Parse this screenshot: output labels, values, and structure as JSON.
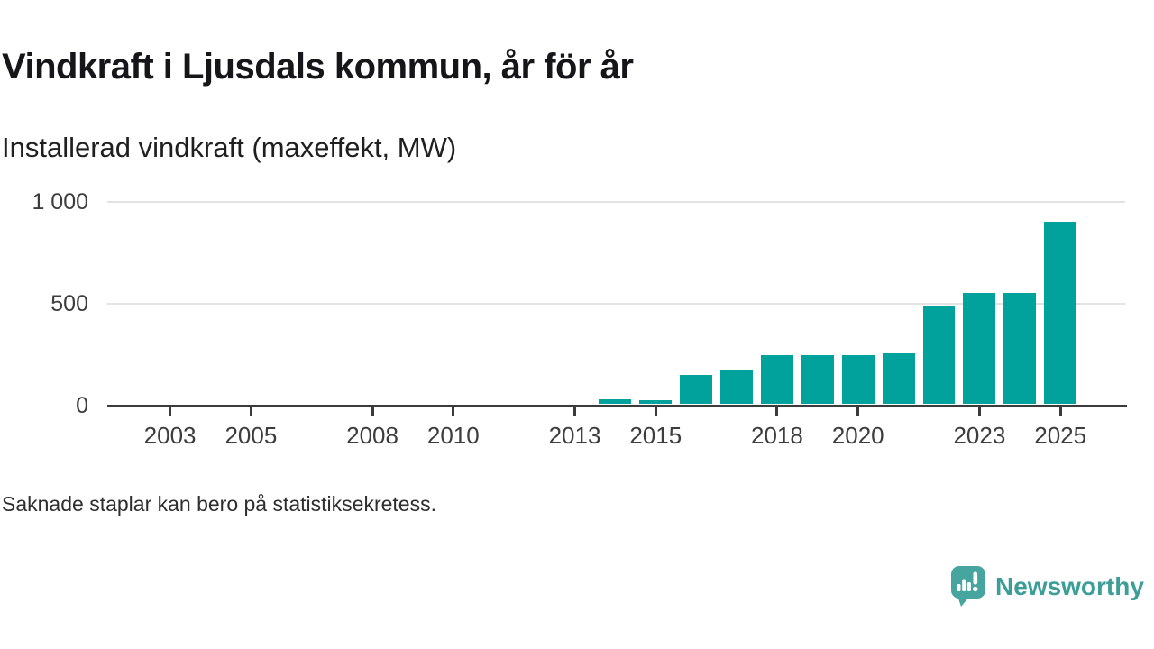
{
  "header": {
    "title": "Vindkraft i Ljusdals kommun, år för år",
    "subtitle": "Installerad vindkraft (maxeffekt, MW)"
  },
  "footer": {
    "note": "Saknade staplar kan bero på statistiksekretess."
  },
  "branding": {
    "name": "Newsworthy",
    "logo_icon": "newsworthy-speech-bubble-bar-chart-icon",
    "logo_color": "#47a5a0",
    "text_color": "#3b9e98"
  },
  "chart_data": {
    "type": "bar",
    "title": "Vindkraft i Ljusdals kommun, år för år",
    "ylabel": "Installerad vindkraft (maxeffekt, MW)",
    "unit": "MW",
    "x": [
      2014,
      2015,
      2016,
      2017,
      2018,
      2019,
      2020,
      2021,
      2022,
      2023,
      2024,
      2025
    ],
    "values": [
      25,
      20,
      145,
      170,
      240,
      240,
      240,
      250,
      480,
      545,
      545,
      895
    ],
    "missing_years_without_bars": [
      2002,
      2003,
      2004,
      2005,
      2006,
      2007,
      2008,
      2009,
      2010,
      2011,
      2012,
      2013
    ],
    "x_ticks": [
      2003,
      2005,
      2008,
      2010,
      2013,
      2015,
      2018,
      2020,
      2023,
      2025
    ],
    "y_ticks": [
      {
        "value": 0,
        "label": "0"
      },
      {
        "value": 500,
        "label": "500"
      },
      {
        "value": 1000,
        "label": "1 000"
      }
    ],
    "xlim": [
      2001.45,
      2026.6
    ],
    "ylim": [
      0,
      1000
    ],
    "grid": "horizontal",
    "legend": "none",
    "bar_color": "#00a29b",
    "axis_color": "#3b3b3b",
    "grid_color": "#e3e3e3"
  }
}
